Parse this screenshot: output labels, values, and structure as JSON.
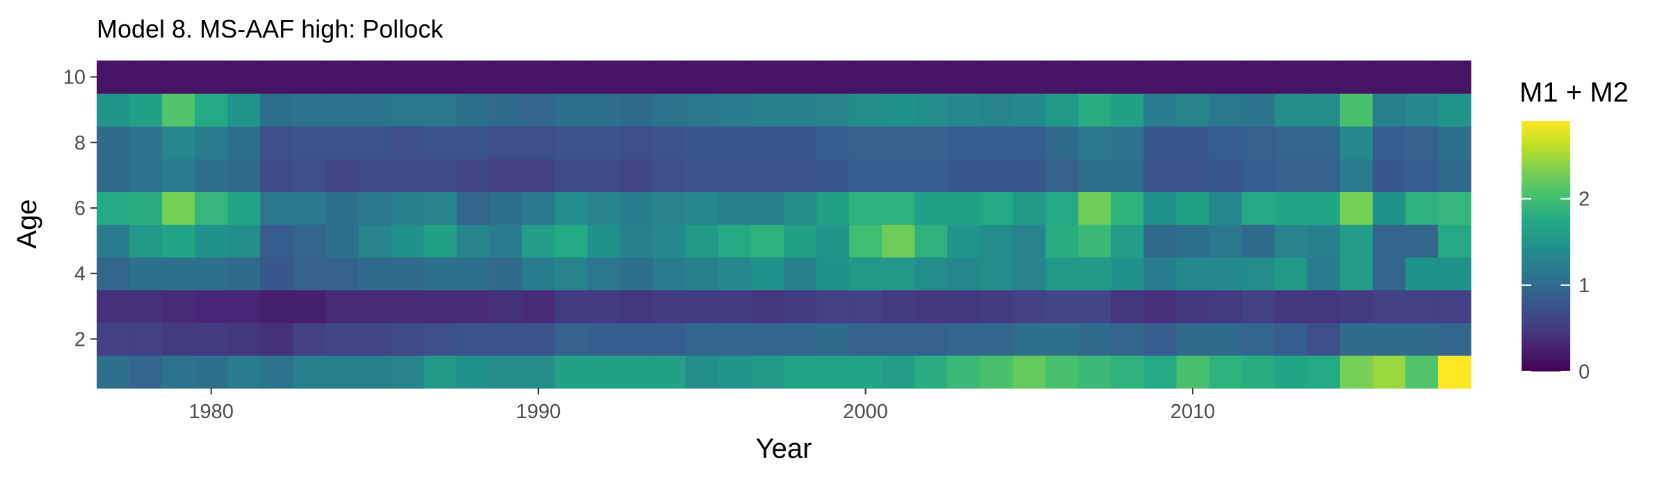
{
  "chart_data": {
    "type": "heatmap",
    "title": "Model 8. MS-AAF high: Pollock",
    "xlabel": "Year",
    "ylabel": "Age",
    "x": [
      1977,
      1978,
      1979,
      1980,
      1981,
      1982,
      1983,
      1984,
      1985,
      1986,
      1987,
      1988,
      1989,
      1990,
      1991,
      1992,
      1993,
      1994,
      1995,
      1996,
      1997,
      1998,
      1999,
      2000,
      2001,
      2002,
      2003,
      2004,
      2005,
      2006,
      2007,
      2008,
      2009,
      2010,
      2011,
      2012,
      2013,
      2014,
      2015,
      2016,
      2017,
      2018
    ],
    "y": [
      1,
      2,
      3,
      4,
      5,
      6,
      7,
      8,
      9,
      10
    ],
    "xlim": [
      1976.5,
      2018.5
    ],
    "ylim": [
      0.5,
      10.5
    ],
    "x_ticks": [
      1980,
      1990,
      2000,
      2010
    ],
    "y_ticks": [
      2,
      4,
      6,
      8,
      10
    ],
    "grid": false,
    "colorscale": "viridis",
    "color_range": [
      0,
      2.9
    ],
    "legend": {
      "title": "M1 + M2",
      "position": "right",
      "ticks": [
        0,
        1,
        2
      ]
    },
    "values": [
      [
        1.05,
        0.95,
        1.1,
        1.05,
        1.2,
        1.1,
        1.25,
        1.25,
        1.25,
        1.3,
        1.55,
        1.45,
        1.4,
        1.4,
        1.65,
        1.65,
        1.65,
        1.65,
        1.4,
        1.5,
        1.55,
        1.7,
        1.7,
        1.7,
        1.6,
        1.8,
        1.95,
        2.05,
        2.2,
        2.05,
        1.95,
        1.85,
        1.75,
        2.05,
        1.85,
        1.8,
        1.7,
        1.75,
        2.3,
        2.45,
        2.1,
        2.9
      ],
      [
        0.55,
        0.55,
        0.5,
        0.5,
        0.45,
        0.4,
        0.55,
        0.6,
        0.6,
        0.65,
        0.7,
        0.75,
        0.75,
        0.75,
        0.9,
        0.85,
        0.85,
        0.85,
        0.95,
        0.95,
        0.95,
        0.95,
        1.0,
        0.9,
        0.9,
        0.9,
        0.95,
        0.95,
        1.05,
        1.05,
        1.0,
        0.95,
        0.85,
        1.0,
        1.0,
        0.95,
        0.85,
        0.7,
        1.0,
        1.0,
        1.0,
        0.95
      ],
      [
        0.4,
        0.4,
        0.35,
        0.3,
        0.3,
        0.25,
        0.25,
        0.35,
        0.35,
        0.35,
        0.35,
        0.35,
        0.4,
        0.35,
        0.5,
        0.5,
        0.45,
        0.5,
        0.5,
        0.5,
        0.45,
        0.5,
        0.55,
        0.55,
        0.5,
        0.45,
        0.45,
        0.5,
        0.55,
        0.6,
        0.6,
        0.45,
        0.4,
        0.45,
        0.5,
        0.55,
        0.45,
        0.45,
        0.5,
        0.55,
        0.55,
        0.55
      ],
      [
        0.95,
        1.05,
        1.05,
        1.05,
        1.0,
        0.8,
        0.9,
        0.9,
        1.0,
        1.0,
        1.05,
        1.05,
        1.0,
        1.2,
        1.3,
        1.15,
        1.05,
        1.2,
        1.25,
        1.35,
        1.45,
        1.25,
        1.45,
        1.55,
        1.55,
        1.4,
        1.35,
        1.4,
        1.3,
        1.55,
        1.55,
        1.45,
        1.2,
        1.35,
        1.35,
        1.4,
        1.55,
        1.2,
        1.6,
        0.95,
        1.45,
        1.45
      ],
      [
        1.2,
        1.55,
        1.7,
        1.45,
        1.4,
        0.85,
        0.95,
        1.05,
        1.3,
        1.45,
        1.65,
        1.3,
        1.2,
        1.6,
        1.75,
        1.45,
        1.25,
        1.35,
        1.55,
        1.75,
        1.85,
        1.65,
        1.5,
        2.0,
        2.25,
        1.85,
        1.5,
        1.4,
        1.3,
        1.8,
        1.95,
        1.6,
        1.0,
        1.05,
        1.15,
        1.0,
        1.3,
        1.25,
        1.6,
        0.95,
        0.95,
        1.75
      ],
      [
        1.75,
        1.8,
        2.3,
        1.9,
        1.7,
        1.15,
        1.15,
        1.05,
        1.15,
        1.25,
        1.3,
        0.95,
        1.05,
        1.15,
        1.4,
        1.3,
        1.2,
        1.3,
        1.35,
        1.25,
        1.25,
        1.4,
        1.65,
        1.85,
        1.85,
        1.65,
        1.65,
        1.75,
        1.55,
        1.75,
        2.25,
        1.85,
        1.45,
        1.65,
        1.35,
        1.75,
        1.7,
        1.7,
        2.3,
        1.45,
        1.85,
        1.9
      ],
      [
        1.0,
        1.1,
        1.2,
        1.05,
        1.0,
        0.65,
        0.7,
        0.6,
        0.65,
        0.65,
        0.65,
        0.6,
        0.55,
        0.55,
        0.65,
        0.65,
        0.6,
        0.7,
        0.75,
        0.75,
        0.75,
        0.75,
        0.8,
        0.85,
        0.85,
        0.85,
        0.8,
        0.8,
        0.8,
        0.9,
        1.05,
        1.05,
        0.75,
        0.75,
        0.8,
        0.85,
        0.9,
        0.9,
        1.2,
        0.8,
        0.85,
        1.0
      ],
      [
        1.0,
        1.1,
        1.35,
        1.2,
        1.05,
        0.7,
        0.75,
        0.75,
        0.75,
        0.7,
        0.75,
        0.75,
        0.7,
        0.7,
        0.75,
        0.75,
        0.7,
        0.75,
        0.8,
        0.8,
        0.8,
        0.8,
        0.85,
        0.9,
        0.9,
        0.9,
        0.85,
        0.85,
        0.85,
        1.0,
        1.15,
        1.1,
        0.8,
        0.8,
        0.85,
        0.9,
        0.95,
        0.95,
        1.35,
        0.85,
        0.9,
        1.05
      ],
      [
        1.5,
        1.65,
        2.1,
        1.75,
        1.5,
        1.05,
        1.1,
        1.1,
        1.1,
        1.15,
        1.15,
        1.05,
        1.0,
        0.95,
        1.05,
        1.05,
        1.0,
        1.1,
        1.15,
        1.2,
        1.25,
        1.25,
        1.3,
        1.4,
        1.45,
        1.4,
        1.35,
        1.3,
        1.35,
        1.55,
        1.8,
        1.65,
        1.2,
        1.3,
        1.15,
        1.1,
        1.4,
        1.4,
        2.05,
        1.25,
        1.35,
        1.5
      ],
      [
        0.15,
        0.15,
        0.15,
        0.15,
        0.15,
        0.15,
        0.15,
        0.15,
        0.15,
        0.15,
        0.15,
        0.15,
        0.15,
        0.15,
        0.15,
        0.15,
        0.15,
        0.15,
        0.15,
        0.15,
        0.15,
        0.15,
        0.15,
        0.15,
        0.15,
        0.15,
        0.15,
        0.15,
        0.15,
        0.15,
        0.15,
        0.15,
        0.15,
        0.15,
        0.15,
        0.15,
        0.15,
        0.15,
        0.15,
        0.15,
        0.15,
        0.15
      ]
    ]
  }
}
